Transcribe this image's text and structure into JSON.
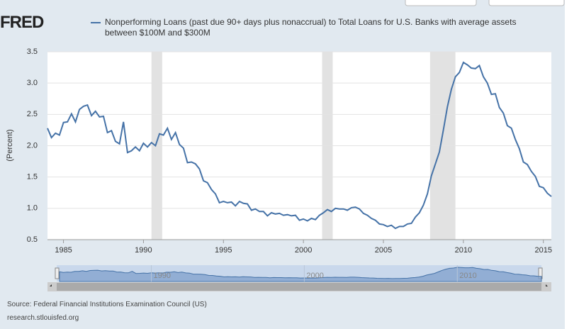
{
  "logo": "FRED",
  "chart_data": {
    "type": "line",
    "title": "Nonperforming Loans (past due 90+ days plus nonaccrual) to Total Loans for U.S. Banks with average assets between $100M and $300M",
    "ylabel": "(Percent)",
    "x": [
      1984,
      1984.25,
      1984.5,
      1984.75,
      1985,
      1985.25,
      1985.5,
      1985.75,
      1986,
      1986.25,
      1986.5,
      1986.75,
      1987,
      1987.25,
      1987.5,
      1987.75,
      1988,
      1988.25,
      1988.5,
      1988.75,
      1989,
      1989.25,
      1989.5,
      1989.75,
      1990,
      1990.25,
      1990.5,
      1990.75,
      1991,
      1991.25,
      1991.5,
      1991.75,
      1992,
      1992.25,
      1992.5,
      1992.75,
      1993,
      1993.25,
      1993.5,
      1993.75,
      1994,
      1994.25,
      1994.5,
      1994.75,
      1995,
      1995.25,
      1995.5,
      1995.75,
      1996,
      1996.25,
      1996.5,
      1996.75,
      1997,
      1997.25,
      1997.5,
      1997.75,
      1998,
      1998.25,
      1998.5,
      1998.75,
      1999,
      1999.25,
      1999.5,
      1999.75,
      2000,
      2000.25,
      2000.5,
      2000.75,
      2001,
      2001.25,
      2001.5,
      2001.75,
      2002,
      2002.25,
      2002.5,
      2002.75,
      2003,
      2003.25,
      2003.5,
      2003.75,
      2004,
      2004.25,
      2004.5,
      2004.75,
      2005,
      2005.25,
      2005.5,
      2005.75,
      2006,
      2006.25,
      2006.5,
      2006.75,
      2007,
      2007.25,
      2007.5,
      2007.75,
      2008,
      2008.25,
      2008.5,
      2008.75,
      2009,
      2009.25,
      2009.5,
      2009.75,
      2010,
      2010.25,
      2010.5,
      2010.75,
      2011,
      2011.25,
      2011.5,
      2011.75,
      2012,
      2012.25,
      2012.5,
      2012.75,
      2013,
      2013.25,
      2013.5,
      2013.75,
      2014,
      2014.25,
      2014.5,
      2014.75,
      2015,
      2015.25,
      2015.5
    ],
    "series": [
      {
        "name": "Nonperforming Loans (past due 90+ days plus nonaccrual) to Total Loans for U.S. Banks with average assets between $100M and $300M",
        "color": "#4572a7",
        "values": [
          2.28,
          2.13,
          2.2,
          2.17,
          2.37,
          2.38,
          2.51,
          2.38,
          2.58,
          2.63,
          2.65,
          2.48,
          2.55,
          2.46,
          2.47,
          2.21,
          2.24,
          2.07,
          2.03,
          2.38,
          1.89,
          1.92,
          1.98,
          1.92,
          2.04,
          1.98,
          2.05,
          2.0,
          2.19,
          2.17,
          2.28,
          2.1,
          2.21,
          2.02,
          1.96,
          1.73,
          1.74,
          1.71,
          1.63,
          1.44,
          1.41,
          1.3,
          1.23,
          1.09,
          1.11,
          1.09,
          1.1,
          1.04,
          1.11,
          1.08,
          1.07,
          0.97,
          0.99,
          0.95,
          0.95,
          0.88,
          0.93,
          0.91,
          0.92,
          0.89,
          0.9,
          0.88,
          0.89,
          0.81,
          0.83,
          0.8,
          0.84,
          0.82,
          0.89,
          0.93,
          0.98,
          0.95,
          1.0,
          0.99,
          0.99,
          0.97,
          1.01,
          1.02,
          0.99,
          0.92,
          0.89,
          0.84,
          0.81,
          0.75,
          0.74,
          0.71,
          0.73,
          0.68,
          0.71,
          0.71,
          0.75,
          0.76,
          0.86,
          0.93,
          1.05,
          1.23,
          1.52,
          1.71,
          1.9,
          2.25,
          2.62,
          2.9,
          3.1,
          3.17,
          3.33,
          3.29,
          3.24,
          3.23,
          3.28,
          3.1,
          3.0,
          2.82,
          2.83,
          2.61,
          2.52,
          2.32,
          2.28,
          2.1,
          1.95,
          1.74,
          1.7,
          1.59,
          1.51,
          1.35,
          1.33,
          1.24,
          1.19
        ]
      }
    ],
    "recessions": [
      [
        1990.5,
        1991.17
      ],
      [
        2001.17,
        2001.83
      ],
      [
        2007.92,
        2009.5
      ]
    ],
    "xlim": [
      1984,
      2015.5
    ],
    "xticks": [
      1985,
      1990,
      1995,
      2000,
      2005,
      2010,
      2015
    ],
    "ylim": [
      0.5,
      3.5
    ],
    "yticks": [
      0.5,
      {
        "value": 1,
        "label": "1.0"
      },
      1.5,
      {
        "value": 2,
        "label": "2.0"
      },
      2.5,
      {
        "value": 3,
        "label": "3.0"
      },
      3.5
    ],
    "navigator_ticks": [
      1990,
      2000,
      2010
    ],
    "grid": true
  },
  "source": "Source: Federal Financial Institutions Examination Council (US)",
  "site": "research.stlouisfed.org"
}
